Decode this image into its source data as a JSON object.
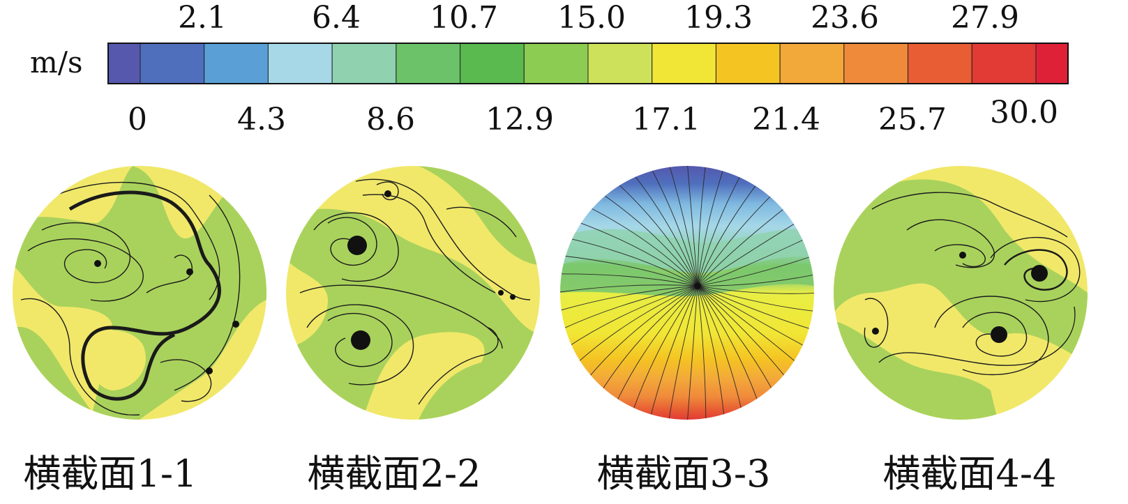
{
  "colorbar": {
    "unit": "m/s",
    "top_ticks": [
      "2.1",
      "6.4",
      "10.7",
      "15.0",
      "19.3",
      "23.6",
      "27.9"
    ],
    "bottom_ticks": [
      "0",
      "4.3",
      "8.6",
      "12.9",
      "17.1",
      "21.4",
      "25.7",
      "30.0"
    ],
    "colors": [
      "#5558ad",
      "#4f6fbd",
      "#5aa0d6",
      "#a6d8e8",
      "#90d2b0",
      "#6cc269",
      "#5ab94f",
      "#8ccc52",
      "#cde25a",
      "#f1e635",
      "#f4c423",
      "#f3a83a",
      "#ef8a3b",
      "#e85d33",
      "#e23a35",
      "#df2138"
    ]
  },
  "sections": [
    {
      "caption": "横截面1-1"
    },
    {
      "caption": "横截面2-2"
    },
    {
      "caption": "横截面3-3"
    },
    {
      "caption": "横截面4-4"
    }
  ]
}
